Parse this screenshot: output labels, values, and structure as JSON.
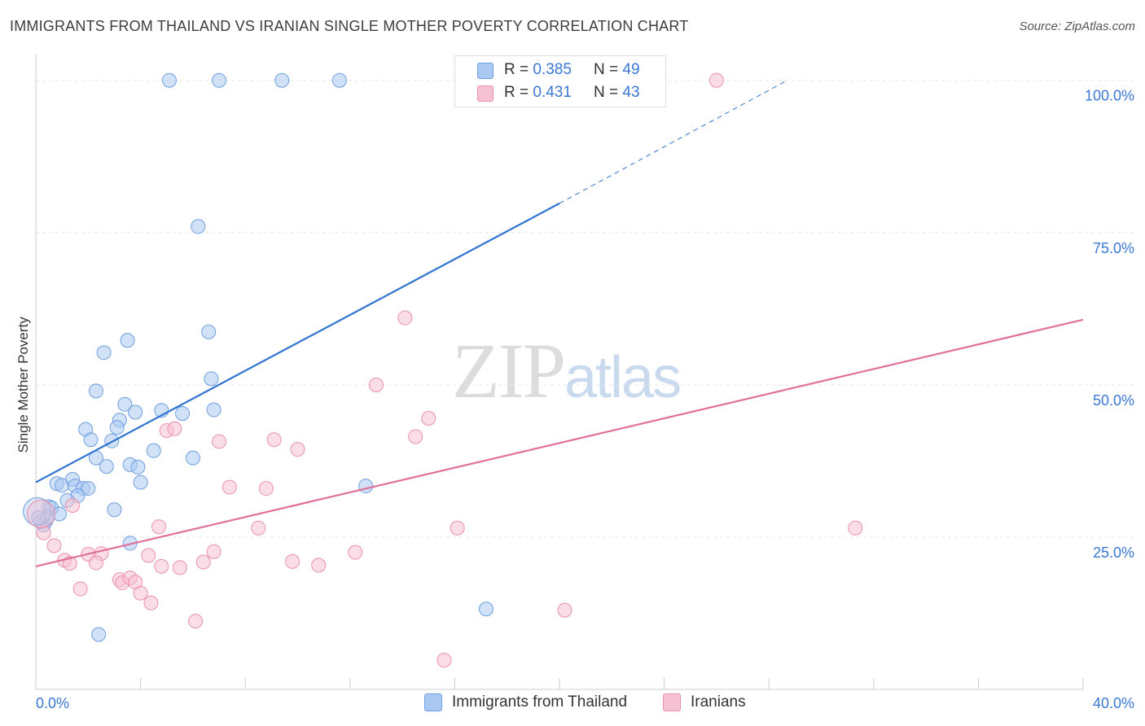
{
  "title": "IMMIGRANTS FROM THAILAND VS IRANIAN SINGLE MOTHER POVERTY CORRELATION CHART",
  "source": "Source: ZipAtlas.com",
  "watermark": {
    "zip": "ZIP",
    "atlas": "atlas"
  },
  "legend_top": [
    {
      "r_label": "R =",
      "r_value": "0.385",
      "n_label": "N =",
      "n_value": "49"
    },
    {
      "r_label": "R =",
      "r_value": "0.431",
      "n_label": "N =",
      "n_value": "43"
    }
  ],
  "legend_bottom": [
    "Immigrants from Thailand",
    "Iranians"
  ],
  "colors": {
    "blue_fill": "#a9c8f2",
    "blue_stroke": "#6f9fe0",
    "blue_line": "#2f74d0",
    "pink_fill": "#f6c1d2",
    "pink_stroke": "#ec90ae",
    "pink_line": "#e0709a",
    "axis_label": "#3a78d4",
    "grid": "#e6e6e6"
  },
  "chart_data": {
    "type": "scatter",
    "title": "IMMIGRANTS FROM THAILAND VS IRANIAN SINGLE MOTHER POVERTY CORRELATION CHART",
    "xlabel": "",
    "ylabel": "Single Mother Poverty",
    "xlim": [
      0,
      40
    ],
    "ylim": [
      0,
      102.5
    ],
    "x_tick_labels": [
      {
        "value": 0,
        "label": "0.0%"
      },
      {
        "value": 40,
        "label": "40.0%"
      }
    ],
    "y_tick_labels": [
      {
        "value": 25,
        "label": "25.0%"
      },
      {
        "value": 50,
        "label": "50.0%"
      },
      {
        "value": 75,
        "label": "75.0%"
      },
      {
        "value": 100,
        "label": "100.0%"
      }
    ],
    "grid": true,
    "legend_position": "top-center",
    "series": [
      {
        "name": "Immigrants from Thailand",
        "R": 0.385,
        "N": 49,
        "trend": {
          "x0": 0,
          "y0": 34.0,
          "x1": 20,
          "y1": 79.8,
          "dash_x1": 28.7,
          "dash_y1": 100
        },
        "points": [
          [
            5.1,
            100
          ],
          [
            7.0,
            100
          ],
          [
            9.4,
            100
          ],
          [
            11.6,
            100
          ],
          [
            6.2,
            76
          ],
          [
            6.6,
            58.7
          ],
          [
            3.5,
            57.3
          ],
          [
            2.6,
            55.3
          ],
          [
            6.7,
            51
          ],
          [
            2.3,
            49
          ],
          [
            3.4,
            46.8
          ],
          [
            4.8,
            45.8
          ],
          [
            3.8,
            45.5
          ],
          [
            6.8,
            45.9
          ],
          [
            5.6,
            45.3
          ],
          [
            3.2,
            44.2
          ],
          [
            1.9,
            42.7
          ],
          [
            3.1,
            43
          ],
          [
            2.1,
            41
          ],
          [
            2.9,
            40.8
          ],
          [
            4.5,
            39.2
          ],
          [
            2.3,
            38
          ],
          [
            6.0,
            38
          ],
          [
            3.6,
            36.9
          ],
          [
            2.7,
            36.6
          ],
          [
            3.9,
            36.5
          ],
          [
            4.0,
            34
          ],
          [
            12.6,
            33.4
          ],
          [
            0.8,
            33.8
          ],
          [
            1.0,
            33.5
          ],
          [
            1.4,
            34.5
          ],
          [
            1.5,
            33.4
          ],
          [
            1.8,
            33
          ],
          [
            2.0,
            33
          ],
          [
            1.6,
            31.8
          ],
          [
            1.2,
            31
          ],
          [
            0.5,
            30
          ],
          [
            0.6,
            29.8
          ],
          [
            0.9,
            28.8
          ],
          [
            0.4,
            27.8
          ],
          [
            3.0,
            29.5
          ],
          [
            0.2,
            27.5
          ],
          [
            0.3,
            27.0
          ],
          [
            0.45,
            28.3
          ],
          [
            0.1,
            28.2
          ],
          [
            3.6,
            24.0
          ],
          [
            17.2,
            13.2
          ],
          [
            2.4,
            9.0
          ],
          [
            0.05,
            29.2
          ]
        ]
      },
      {
        "name": "Iranians",
        "R": 0.431,
        "N": 43,
        "trend": {
          "x0": 0,
          "y0": 20.2,
          "x1": 40,
          "y1": 60.7
        },
        "points": [
          [
            26.0,
            100
          ],
          [
            14.1,
            61
          ],
          [
            13.0,
            50
          ],
          [
            15.0,
            44.5
          ],
          [
            14.5,
            41.5
          ],
          [
            5.0,
            42.5
          ],
          [
            5.3,
            42.8
          ],
          [
            7.0,
            40.7
          ],
          [
            9.1,
            41
          ],
          [
            10.0,
            39.4
          ],
          [
            7.4,
            33.2
          ],
          [
            8.8,
            33
          ],
          [
            16.1,
            26.5
          ],
          [
            31.3,
            26.5
          ],
          [
            4.7,
            26.7
          ],
          [
            8.5,
            26.5
          ],
          [
            0.3,
            25.7
          ],
          [
            0.7,
            23.6
          ],
          [
            6.8,
            22.6
          ],
          [
            12.2,
            22.5
          ],
          [
            2.0,
            22.2
          ],
          [
            2.5,
            22.3
          ],
          [
            4.3,
            22.0
          ],
          [
            1.1,
            21.2
          ],
          [
            1.3,
            20.7
          ],
          [
            2.3,
            20.8
          ],
          [
            6.4,
            20.9
          ],
          [
            9.8,
            21
          ],
          [
            10.8,
            20.4
          ],
          [
            5.5,
            20
          ],
          [
            4.8,
            20.2
          ],
          [
            3.2,
            18
          ],
          [
            3.3,
            17.5
          ],
          [
            3.6,
            18.3
          ],
          [
            3.8,
            17.6
          ],
          [
            1.7,
            16.5
          ],
          [
            4.0,
            15.8
          ],
          [
            4.4,
            14.2
          ],
          [
            20.2,
            13
          ],
          [
            6.1,
            11.2
          ],
          [
            15.6,
            4.8
          ],
          [
            1.4,
            30.2
          ],
          [
            0.2,
            28.8
          ]
        ]
      }
    ]
  }
}
